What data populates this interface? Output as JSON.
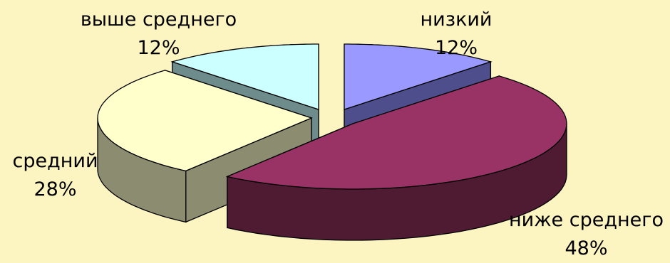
{
  "background": "#fcf4c1",
  "chart_data": {
    "type": "pie",
    "title": "",
    "style": "3d-exploded",
    "slices": [
      {
        "label": "низкий",
        "value": 12,
        "pct_label": "12%",
        "top": "#9999ff",
        "side": "#4e4e8c"
      },
      {
        "label": "ниже среднего",
        "value": 48,
        "pct_label": "48%",
        "top": "#993366",
        "side": "#4e1b33"
      },
      {
        "label": "средний",
        "value": 28,
        "pct_label": "28%",
        "top": "#ffffcc",
        "side": "#8c8c70"
      },
      {
        "label": "выше среднего",
        "value": 12,
        "pct_label": "12%",
        "top": "#ccffff",
        "side": "#6e8c8c"
      }
    ]
  }
}
